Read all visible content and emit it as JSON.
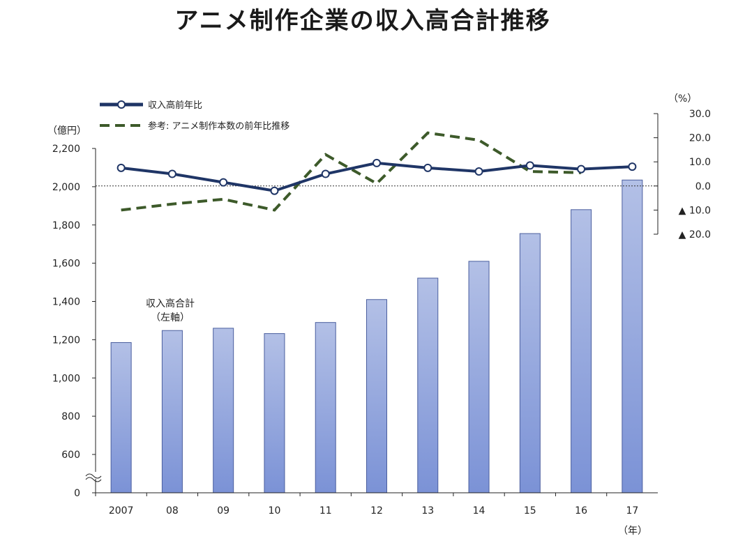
{
  "title": "アニメ制作企業の収入高合計推移",
  "colors": {
    "bar_top": "#b3c0e6",
    "bar_bottom": "#7b92d6",
    "bar_edge": "#4a5e9e",
    "line_main": "#1f3566",
    "line_ref": "#3d5a2a",
    "axis": "#222222"
  },
  "chart_data": {
    "type": "bar",
    "categories": [
      "2007",
      "08",
      "09",
      "10",
      "11",
      "12",
      "13",
      "14",
      "15",
      "16",
      "17"
    ],
    "xlabel_unit": "（年）",
    "left_axis": {
      "unit_label": "（億円）",
      "ylim": [
        0,
        2200
      ],
      "ticks": [
        "0",
        "600",
        "800",
        "1,000",
        "1,200",
        "1,400",
        "1,600",
        "1,800",
        "2,000",
        "2,200"
      ],
      "tick_values": [
        0,
        600,
        800,
        1000,
        1200,
        1400,
        1600,
        1800,
        2000,
        2200
      ],
      "axis_break": true
    },
    "right_axis": {
      "unit_label": "（%）",
      "ylim": [
        -20,
        30
      ],
      "ticks": [
        "30.0",
        "20.0",
        "10.0",
        "0.0",
        "▲ 10.0",
        "▲ 20.0"
      ],
      "tick_values": [
        30,
        20,
        10,
        0,
        -10,
        -20
      ]
    },
    "series": [
      {
        "name": "収入高合計",
        "axis": "left",
        "kind": "bar",
        "values": [
          1185,
          1248,
          1260,
          1232,
          1290,
          1410,
          1522,
          1610,
          1755,
          1880,
          2035
        ]
      },
      {
        "name": "収入高前年比",
        "axis": "right",
        "kind": "line",
        "values": [
          7.5,
          5.0,
          1.5,
          -2.0,
          5.0,
          9.5,
          7.5,
          6.0,
          8.5,
          7.0,
          8.0
        ]
      },
      {
        "name": "参考: アニメ制作本数の前年比推移",
        "axis": "right",
        "kind": "dashed-line",
        "values": [
          -10.0,
          -7.5,
          -5.5,
          -10.0,
          13.0,
          1.0,
          22.0,
          19.0,
          6.0,
          5.5,
          null
        ]
      }
    ],
    "annotation": {
      "line1": "収入高合計",
      "line2": "（左軸）"
    },
    "legend_placement": "top-left",
    "grid": false
  }
}
